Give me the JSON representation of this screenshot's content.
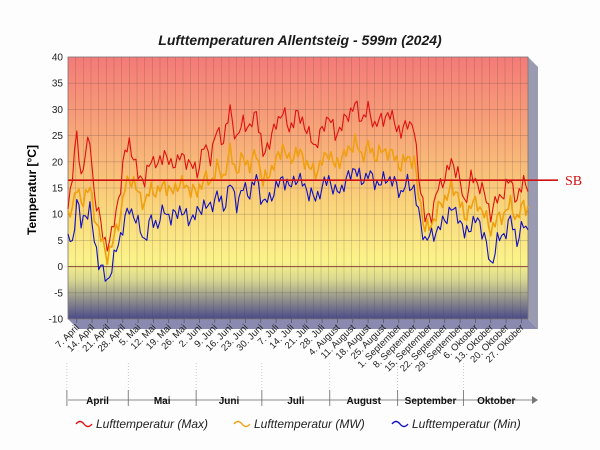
{
  "chart_data": {
    "type": "line",
    "title": "Lufttemperaturen Allentsteig - 599m (2024)",
    "ylabel": "Temperatur [°C]",
    "xlabel": "",
    "ylim": [
      -10,
      40
    ],
    "yticks": [
      -10,
      -5,
      0,
      5,
      10,
      15,
      20,
      25,
      30,
      35,
      40
    ],
    "grid": true,
    "legend_position": "bottom",
    "x_start": "2024-04-03",
    "x_end": "2024-10-30",
    "x_ticks": [
      {
        "date": "2024-04-07",
        "label": "7. April"
      },
      {
        "date": "2024-04-14",
        "label": "14. April"
      },
      {
        "date": "2024-04-21",
        "label": "21. April"
      },
      {
        "date": "2024-04-28",
        "label": "28. April"
      },
      {
        "date": "2024-05-05",
        "label": "5. Mai"
      },
      {
        "date": "2024-05-12",
        "label": "12. Mai"
      },
      {
        "date": "2024-05-19",
        "label": "19. Mai"
      },
      {
        "date": "2024-05-26",
        "label": "26. Mai"
      },
      {
        "date": "2024-06-02",
        "label": "2. Juni"
      },
      {
        "date": "2024-06-09",
        "label": "9. Juni"
      },
      {
        "date": "2024-06-16",
        "label": "16. Juni"
      },
      {
        "date": "2024-06-23",
        "label": "23. Juni"
      },
      {
        "date": "2024-06-30",
        "label": "30. Juni"
      },
      {
        "date": "2024-07-07",
        "label": "7. Juli"
      },
      {
        "date": "2024-07-14",
        "label": "14. Juli"
      },
      {
        "date": "2024-07-21",
        "label": "21. Juli"
      },
      {
        "date": "2024-07-28",
        "label": "28. Juli"
      },
      {
        "date": "2024-08-04",
        "label": "4. August"
      },
      {
        "date": "2024-08-11",
        "label": "11. August"
      },
      {
        "date": "2024-08-18",
        "label": "18. August"
      },
      {
        "date": "2024-08-25",
        "label": "25. August"
      },
      {
        "date": "2024-09-01",
        "label": "1. September"
      },
      {
        "date": "2024-09-08",
        "label": "8. September"
      },
      {
        "date": "2024-09-15",
        "label": "15. September"
      },
      {
        "date": "2024-09-22",
        "label": "22. September"
      },
      {
        "date": "2024-09-29",
        "label": "29. September"
      },
      {
        "date": "2024-10-06",
        "label": "6. Oktober"
      },
      {
        "date": "2024-10-13",
        "label": "13. Oktober"
      },
      {
        "date": "2024-10-20",
        "label": "20. Oktober"
      },
      {
        "date": "2024-10-27",
        "label": "27. Oktober"
      }
    ],
    "months": [
      {
        "label": "April",
        "start": "2024-04-03",
        "end": "2024-04-30"
      },
      {
        "label": "Mai",
        "start": "2024-05-01",
        "end": "2024-05-31"
      },
      {
        "label": "Juni",
        "start": "2024-06-01",
        "end": "2024-06-30"
      },
      {
        "label": "Juli",
        "start": "2024-07-01",
        "end": "2024-07-31"
      },
      {
        "label": "August",
        "start": "2024-08-01",
        "end": "2024-08-31"
      },
      {
        "label": "September",
        "start": "2024-09-01",
        "end": "2024-09-30"
      },
      {
        "label": "Oktober",
        "start": "2024-10-01",
        "end": "2024-10-30"
      }
    ],
    "reference_line": {
      "label": "SB",
      "value": 16.5,
      "color": "#d01010"
    },
    "series": [
      {
        "name": "Lufttemperatur (Max)",
        "color": "#e01010",
        "keypoints": [
          [
            "2024-04-03",
            11
          ],
          [
            "2024-04-05",
            18
          ],
          [
            "2024-04-07",
            25
          ],
          [
            "2024-04-09",
            17
          ],
          [
            "2024-04-11",
            22
          ],
          [
            "2024-04-13",
            24
          ],
          [
            "2024-04-15",
            14
          ],
          [
            "2024-04-17",
            10
          ],
          [
            "2024-04-19",
            6
          ],
          [
            "2024-04-21",
            4
          ],
          [
            "2024-04-23",
            6
          ],
          [
            "2024-04-25",
            11
          ],
          [
            "2024-04-27",
            15
          ],
          [
            "2024-04-29",
            22
          ],
          [
            "2024-05-01",
            24
          ],
          [
            "2024-05-03",
            20
          ],
          [
            "2024-05-05",
            18
          ],
          [
            "2024-05-08",
            16
          ],
          [
            "2024-05-11",
            21
          ],
          [
            "2024-05-14",
            19
          ],
          [
            "2024-05-17",
            22
          ],
          [
            "2024-05-20",
            19
          ],
          [
            "2024-05-24",
            21
          ],
          [
            "2024-05-28",
            20
          ],
          [
            "2024-06-01",
            18
          ],
          [
            "2024-06-04",
            23
          ],
          [
            "2024-06-07",
            21
          ],
          [
            "2024-06-10",
            26
          ],
          [
            "2024-06-13",
            24
          ],
          [
            "2024-06-16",
            30
          ],
          [
            "2024-06-19",
            24
          ],
          [
            "2024-06-22",
            28
          ],
          [
            "2024-06-25",
            26
          ],
          [
            "2024-06-28",
            30
          ],
          [
            "2024-07-01",
            21
          ],
          [
            "2024-07-04",
            24
          ],
          [
            "2024-07-07",
            27
          ],
          [
            "2024-07-10",
            30
          ],
          [
            "2024-07-13",
            26
          ],
          [
            "2024-07-16",
            29
          ],
          [
            "2024-07-19",
            28
          ],
          [
            "2024-07-22",
            25
          ],
          [
            "2024-07-25",
            23
          ],
          [
            "2024-07-28",
            26
          ],
          [
            "2024-07-31",
            29
          ],
          [
            "2024-08-03",
            25
          ],
          [
            "2024-08-06",
            27
          ],
          [
            "2024-08-09",
            29
          ],
          [
            "2024-08-12",
            31
          ],
          [
            "2024-08-15",
            28
          ],
          [
            "2024-08-18",
            30
          ],
          [
            "2024-08-21",
            27
          ],
          [
            "2024-08-24",
            28
          ],
          [
            "2024-08-27",
            29
          ],
          [
            "2024-08-30",
            28
          ],
          [
            "2024-09-02",
            25
          ],
          [
            "2024-09-05",
            28
          ],
          [
            "2024-09-08",
            26
          ],
          [
            "2024-09-10",
            18
          ],
          [
            "2024-09-13",
            9
          ],
          [
            "2024-09-16",
            10
          ],
          [
            "2024-09-19",
            15
          ],
          [
            "2024-09-22",
            17
          ],
          [
            "2024-09-25",
            20
          ],
          [
            "2024-09-28",
            18
          ],
          [
            "2024-10-01",
            12
          ],
          [
            "2024-10-04",
            17
          ],
          [
            "2024-10-07",
            16
          ],
          [
            "2024-10-10",
            14
          ],
          [
            "2024-10-13",
            10
          ],
          [
            "2024-10-16",
            13
          ],
          [
            "2024-10-19",
            14
          ],
          [
            "2024-10-22",
            17
          ],
          [
            "2024-10-25",
            12
          ],
          [
            "2024-10-28",
            17
          ],
          [
            "2024-10-30",
            15
          ]
        ]
      },
      {
        "name": "Lufttemperatur (MW)",
        "color": "#f0a010",
        "keypoints": [
          [
            "2024-04-03",
            9
          ],
          [
            "2024-04-05",
            12
          ],
          [
            "2024-04-07",
            15
          ],
          [
            "2024-04-09",
            12
          ],
          [
            "2024-04-11",
            14
          ],
          [
            "2024-04-13",
            15
          ],
          [
            "2024-04-15",
            10
          ],
          [
            "2024-04-17",
            7
          ],
          [
            "2024-04-19",
            4
          ],
          [
            "2024-04-21",
            2
          ],
          [
            "2024-04-23",
            4
          ],
          [
            "2024-04-25",
            7
          ],
          [
            "2024-04-27",
            10
          ],
          [
            "2024-04-29",
            15
          ],
          [
            "2024-05-01",
            17
          ],
          [
            "2024-05-03",
            16
          ],
          [
            "2024-05-05",
            14
          ],
          [
            "2024-05-08",
            12
          ],
          [
            "2024-05-11",
            15
          ],
          [
            "2024-05-14",
            14
          ],
          [
            "2024-05-17",
            16
          ],
          [
            "2024-05-20",
            14
          ],
          [
            "2024-05-24",
            16
          ],
          [
            "2024-05-28",
            15
          ],
          [
            "2024-06-01",
            14
          ],
          [
            "2024-06-04",
            17
          ],
          [
            "2024-06-07",
            16
          ],
          [
            "2024-06-10",
            19
          ],
          [
            "2024-06-13",
            17
          ],
          [
            "2024-06-16",
            22
          ],
          [
            "2024-06-19",
            18
          ],
          [
            "2024-06-22",
            21
          ],
          [
            "2024-06-25",
            19
          ],
          [
            "2024-06-28",
            22
          ],
          [
            "2024-07-01",
            16
          ],
          [
            "2024-07-04",
            18
          ],
          [
            "2024-07-07",
            20
          ],
          [
            "2024-07-10",
            23
          ],
          [
            "2024-07-13",
            20
          ],
          [
            "2024-07-16",
            22
          ],
          [
            "2024-07-19",
            21
          ],
          [
            "2024-07-22",
            19
          ],
          [
            "2024-07-25",
            18
          ],
          [
            "2024-07-28",
            20
          ],
          [
            "2024-07-31",
            22
          ],
          [
            "2024-08-03",
            19
          ],
          [
            "2024-08-06",
            21
          ],
          [
            "2024-08-09",
            22
          ],
          [
            "2024-08-12",
            24
          ],
          [
            "2024-08-15",
            21
          ],
          [
            "2024-08-18",
            23
          ],
          [
            "2024-08-21",
            21
          ],
          [
            "2024-08-24",
            22
          ],
          [
            "2024-08-27",
            22
          ],
          [
            "2024-08-30",
            21
          ],
          [
            "2024-09-02",
            19
          ],
          [
            "2024-09-05",
            21
          ],
          [
            "2024-09-08",
            20
          ],
          [
            "2024-09-10",
            14
          ],
          [
            "2024-09-13",
            7
          ],
          [
            "2024-09-16",
            8
          ],
          [
            "2024-09-19",
            11
          ],
          [
            "2024-09-22",
            13
          ],
          [
            "2024-09-25",
            15
          ],
          [
            "2024-09-28",
            14
          ],
          [
            "2024-10-01",
            9
          ],
          [
            "2024-10-04",
            12
          ],
          [
            "2024-10-07",
            12
          ],
          [
            "2024-10-10",
            10
          ],
          [
            "2024-10-13",
            7
          ],
          [
            "2024-10-16",
            9
          ],
          [
            "2024-10-19",
            10
          ],
          [
            "2024-10-22",
            12
          ],
          [
            "2024-10-25",
            9
          ],
          [
            "2024-10-28",
            12
          ],
          [
            "2024-10-30",
            11
          ]
        ]
      },
      {
        "name": "Lufttemperatur (Min)",
        "color": "#1010c0",
        "keypoints": [
          [
            "2024-04-03",
            6
          ],
          [
            "2024-04-05",
            4
          ],
          [
            "2024-04-07",
            13
          ],
          [
            "2024-04-09",
            8
          ],
          [
            "2024-04-11",
            10
          ],
          [
            "2024-04-13",
            11
          ],
          [
            "2024-04-15",
            5
          ],
          [
            "2024-04-17",
            1
          ],
          [
            "2024-04-19",
            -1
          ],
          [
            "2024-04-21",
            -3
          ],
          [
            "2024-04-23",
            0
          ],
          [
            "2024-04-25",
            3
          ],
          [
            "2024-04-27",
            6
          ],
          [
            "2024-04-29",
            9
          ],
          [
            "2024-05-01",
            11
          ],
          [
            "2024-05-03",
            10
          ],
          [
            "2024-05-05",
            8
          ],
          [
            "2024-05-08",
            5
          ],
          [
            "2024-05-11",
            9
          ],
          [
            "2024-05-14",
            8
          ],
          [
            "2024-05-17",
            11
          ],
          [
            "2024-05-20",
            9
          ],
          [
            "2024-05-24",
            11
          ],
          [
            "2024-05-28",
            9
          ],
          [
            "2024-06-01",
            10
          ],
          [
            "2024-06-04",
            12
          ],
          [
            "2024-06-07",
            11
          ],
          [
            "2024-06-10",
            14
          ],
          [
            "2024-06-13",
            11
          ],
          [
            "2024-06-16",
            16
          ],
          [
            "2024-06-19",
            12
          ],
          [
            "2024-06-22",
            15
          ],
          [
            "2024-06-25",
            14
          ],
          [
            "2024-06-28",
            17
          ],
          [
            "2024-07-01",
            12
          ],
          [
            "2024-07-04",
            13
          ],
          [
            "2024-07-07",
            15
          ],
          [
            "2024-07-10",
            17
          ],
          [
            "2024-07-13",
            15
          ],
          [
            "2024-07-16",
            17
          ],
          [
            "2024-07-19",
            16
          ],
          [
            "2024-07-22",
            14
          ],
          [
            "2024-07-25",
            13
          ],
          [
            "2024-07-28",
            15
          ],
          [
            "2024-07-31",
            17
          ],
          [
            "2024-08-03",
            14
          ],
          [
            "2024-08-06",
            15
          ],
          [
            "2024-08-09",
            17
          ],
          [
            "2024-08-12",
            19
          ],
          [
            "2024-08-15",
            16
          ],
          [
            "2024-08-18",
            18
          ],
          [
            "2024-08-21",
            16
          ],
          [
            "2024-08-24",
            16
          ],
          [
            "2024-08-27",
            17
          ],
          [
            "2024-08-30",
            16
          ],
          [
            "2024-09-02",
            14
          ],
          [
            "2024-09-05",
            16
          ],
          [
            "2024-09-08",
            15
          ],
          [
            "2024-09-10",
            10
          ],
          [
            "2024-09-13",
            5
          ],
          [
            "2024-09-16",
            6
          ],
          [
            "2024-09-19",
            7
          ],
          [
            "2024-09-22",
            9
          ],
          [
            "2024-09-25",
            11
          ],
          [
            "2024-09-28",
            10
          ],
          [
            "2024-10-01",
            6
          ],
          [
            "2024-10-04",
            8
          ],
          [
            "2024-10-07",
            9
          ],
          [
            "2024-10-10",
            6
          ],
          [
            "2024-10-13",
            0
          ],
          [
            "2024-10-16",
            5
          ],
          [
            "2024-10-19",
            6
          ],
          [
            "2024-10-22",
            9
          ],
          [
            "2024-10-25",
            5
          ],
          [
            "2024-10-28",
            8
          ],
          [
            "2024-10-30",
            7
          ]
        ]
      }
    ]
  }
}
